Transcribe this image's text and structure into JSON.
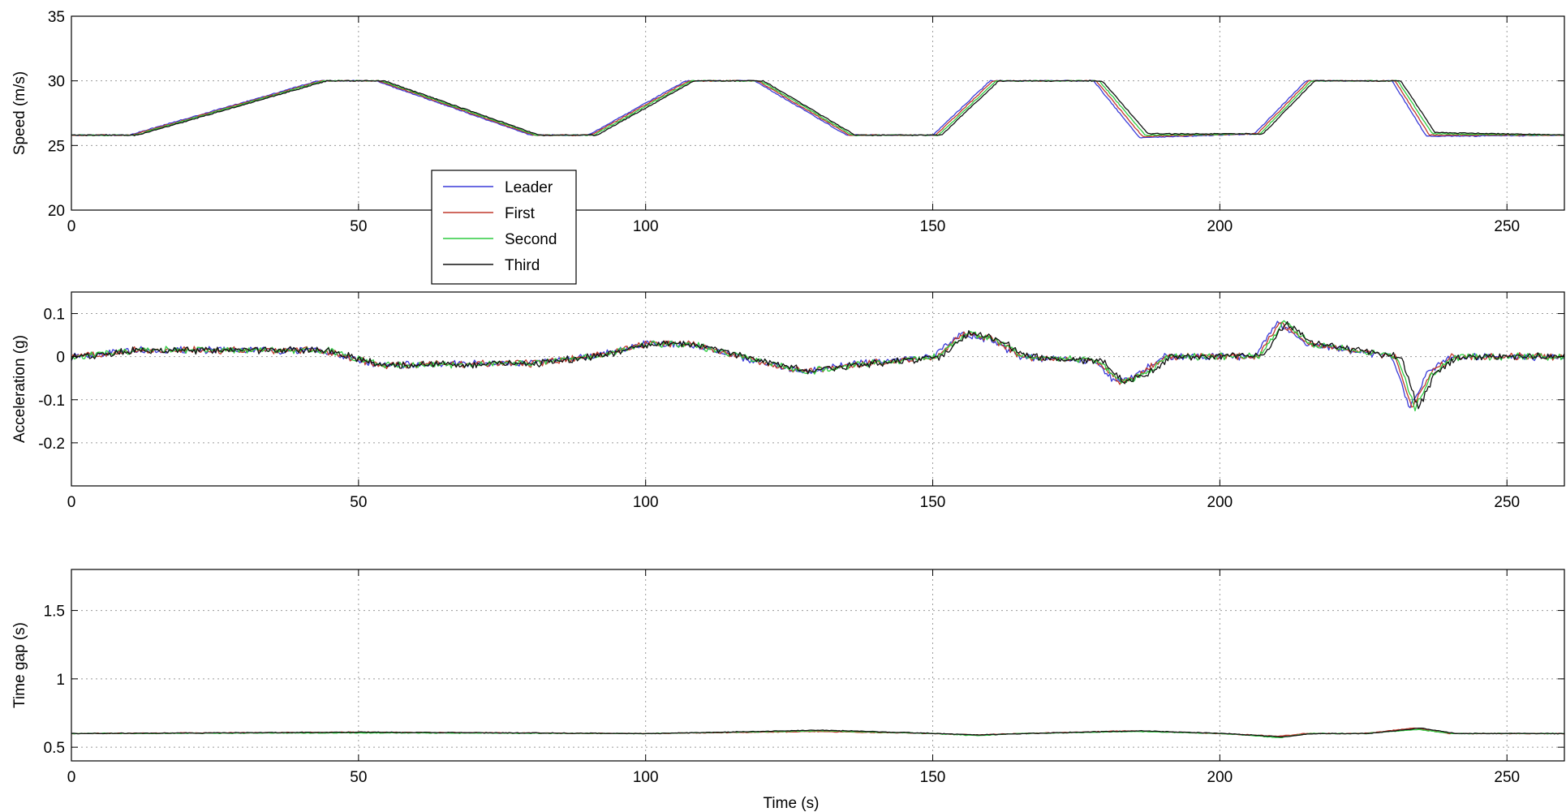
{
  "chart_data": [
    {
      "type": "line",
      "ylabel": "Speed (m/s)",
      "xlabel": "",
      "xlim": [
        0,
        260
      ],
      "ylim": [
        20,
        35
      ],
      "xticks": [
        0,
        50,
        100,
        150,
        200,
        250
      ],
      "yticks": [
        20,
        25,
        30,
        35
      ],
      "grid": true,
      "legend": {
        "placement": "inside, lower-left of center (overlapping top panel)"
      },
      "series": [
        {
          "name": "Leader",
          "color": "#3a3ad8",
          "lag": 0,
          "x": [
            0,
            10,
            43,
            53,
            80,
            90,
            107,
            119,
            135,
            150,
            160,
            178,
            186,
            206,
            215,
            230,
            236,
            260
          ],
          "y": [
            25.8,
            25.8,
            30,
            30,
            25.8,
            25.8,
            30,
            30,
            25.8,
            25.8,
            30,
            30,
            25.6,
            25.9,
            30,
            30,
            25.7,
            25.8
          ]
        },
        {
          "name": "First",
          "color": "#c0392b",
          "lag": 0.5,
          "x": [
            0,
            10,
            43,
            53,
            80,
            90,
            107,
            119,
            135,
            150,
            160,
            178,
            186,
            206,
            215,
            230,
            236,
            260
          ],
          "y": [
            25.8,
            25.8,
            30,
            30,
            25.8,
            25.8,
            30,
            30,
            25.8,
            25.8,
            30,
            30,
            25.7,
            25.9,
            30,
            30,
            25.8,
            25.8
          ]
        },
        {
          "name": "Second",
          "color": "#2ecc40",
          "lag": 1.0,
          "x": [
            0,
            10,
            43,
            53,
            80,
            90,
            107,
            119,
            135,
            150,
            160,
            178,
            186,
            206,
            215,
            230,
            236,
            260
          ],
          "y": [
            25.8,
            25.8,
            30,
            30,
            25.8,
            25.8,
            30,
            30,
            25.8,
            25.8,
            30,
            30,
            25.8,
            25.9,
            30,
            30,
            25.9,
            25.8
          ]
        },
        {
          "name": "Third",
          "color": "#111111",
          "lag": 1.5,
          "x": [
            0,
            10,
            43,
            53,
            80,
            90,
            107,
            119,
            135,
            150,
            160,
            178,
            186,
            206,
            215,
            230,
            236,
            260
          ],
          "y": [
            25.8,
            25.8,
            30,
            30,
            25.8,
            25.8,
            30,
            30,
            25.8,
            25.8,
            30,
            30,
            25.9,
            25.9,
            30,
            30,
            26.0,
            25.8
          ]
        }
      ]
    },
    {
      "type": "line",
      "ylabel": "Acceleration (g)",
      "xlabel": "",
      "xlim": [
        0,
        260
      ],
      "ylim": [
        -0.3,
        0.15
      ],
      "xticks": [
        0,
        50,
        100,
        150,
        200,
        250
      ],
      "yticks": [
        -0.2,
        -0.1,
        0,
        0.1
      ],
      "ytick_labels": [
        "-0.2",
        "-0.1",
        "0",
        "0.1"
      ],
      "grid": true,
      "series": [
        {
          "name": "Leader",
          "color": "#3a3ad8",
          "lag": 0,
          "x": [
            0,
            10,
            43,
            53,
            80,
            90,
            100,
            107,
            119,
            127,
            135,
            150,
            155,
            160,
            165,
            178,
            182,
            186,
            190,
            206,
            210,
            215,
            230,
            233,
            236,
            240,
            260
          ],
          "y": [
            0.0,
            0.015,
            0.015,
            -0.02,
            -0.015,
            0.0,
            0.03,
            0.03,
            -0.01,
            -0.035,
            -0.02,
            0.0,
            0.055,
            0.04,
            0.0,
            -0.01,
            -0.06,
            -0.04,
            0.0,
            0.0,
            0.08,
            0.03,
            0.0,
            -0.12,
            -0.04,
            0.0,
            0.0
          ]
        },
        {
          "name": "First",
          "color": "#c0392b",
          "lag": 0.5,
          "x": [
            0,
            10,
            43,
            53,
            80,
            90,
            100,
            107,
            119,
            127,
            135,
            150,
            155,
            160,
            165,
            178,
            182,
            186,
            190,
            206,
            210,
            215,
            230,
            233,
            236,
            240,
            260
          ],
          "y": [
            0.0,
            0.015,
            0.015,
            -0.02,
            -0.015,
            0.0,
            0.03,
            0.03,
            -0.01,
            -0.035,
            -0.02,
            0.0,
            0.055,
            0.04,
            0.0,
            -0.01,
            -0.06,
            -0.04,
            0.0,
            0.0,
            0.08,
            0.03,
            0.0,
            -0.12,
            -0.04,
            0.0,
            0.0
          ]
        },
        {
          "name": "Second",
          "color": "#2ecc40",
          "lag": 1.0,
          "x": [
            0,
            10,
            43,
            53,
            80,
            90,
            100,
            107,
            119,
            127,
            135,
            150,
            155,
            160,
            165,
            178,
            182,
            186,
            190,
            206,
            210,
            215,
            230,
            233,
            236,
            240,
            260
          ],
          "y": [
            0.0,
            0.015,
            0.015,
            -0.02,
            -0.015,
            0.0,
            0.03,
            0.03,
            -0.01,
            -0.035,
            -0.02,
            0.0,
            0.055,
            0.04,
            0.0,
            -0.01,
            -0.06,
            -0.04,
            0.0,
            0.0,
            0.08,
            0.03,
            0.0,
            -0.12,
            -0.04,
            0.0,
            0.0
          ]
        },
        {
          "name": "Third",
          "color": "#111111",
          "lag": 1.5,
          "x": [
            0,
            10,
            43,
            53,
            80,
            90,
            100,
            107,
            119,
            127,
            135,
            150,
            155,
            160,
            165,
            178,
            182,
            186,
            190,
            206,
            210,
            215,
            230,
            233,
            236,
            240,
            260
          ],
          "y": [
            0.0,
            0.015,
            0.015,
            -0.02,
            -0.015,
            0.0,
            0.03,
            0.03,
            -0.01,
            -0.035,
            -0.02,
            0.0,
            0.055,
            0.04,
            0.0,
            -0.01,
            -0.06,
            -0.04,
            0.0,
            0.0,
            0.08,
            0.03,
            0.0,
            -0.12,
            -0.04,
            0.0,
            0.0
          ]
        }
      ]
    },
    {
      "type": "line",
      "ylabel": "Time gap (s)",
      "xlabel": "Time (s)",
      "xlim": [
        0,
        260
      ],
      "ylim": [
        0.4,
        1.8
      ],
      "xticks": [
        0,
        50,
        100,
        150,
        200,
        250
      ],
      "yticks": [
        0.5,
        1,
        1.5
      ],
      "ytick_labels": [
        "0.5",
        "1",
        "1.5"
      ],
      "grid": true,
      "series": [
        {
          "name": "First",
          "color": "#c0392b",
          "lag": 0,
          "x": [
            0,
            50,
            100,
            130,
            150,
            157,
            165,
            185,
            200,
            210,
            215,
            225,
            234,
            240,
            260
          ],
          "y": [
            0.6,
            0.61,
            0.6,
            0.615,
            0.6,
            0.59,
            0.6,
            0.62,
            0.6,
            0.58,
            0.6,
            0.6,
            0.64,
            0.6,
            0.6
          ]
        },
        {
          "name": "Second",
          "color": "#2ecc40",
          "lag": 0.5,
          "x": [
            0,
            50,
            100,
            130,
            150,
            157,
            165,
            185,
            200,
            210,
            215,
            225,
            234,
            240,
            260
          ],
          "y": [
            0.6,
            0.605,
            0.6,
            0.62,
            0.6,
            0.585,
            0.6,
            0.615,
            0.6,
            0.57,
            0.6,
            0.6,
            0.63,
            0.6,
            0.6
          ]
        },
        {
          "name": "Third",
          "color": "#111111",
          "lag": 1.0,
          "x": [
            0,
            50,
            100,
            130,
            150,
            157,
            165,
            185,
            200,
            210,
            215,
            225,
            234,
            240,
            260
          ],
          "y": [
            0.6,
            0.61,
            0.6,
            0.625,
            0.6,
            0.59,
            0.6,
            0.62,
            0.6,
            0.575,
            0.6,
            0.6,
            0.64,
            0.6,
            0.6
          ]
        }
      ]
    }
  ]
}
